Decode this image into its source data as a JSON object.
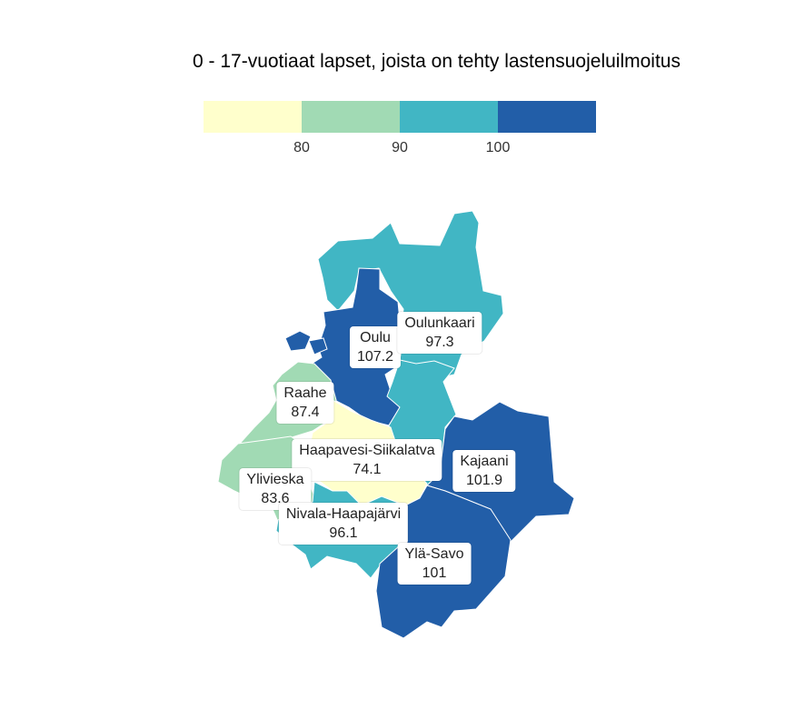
{
  "title": "0 - 17-vuotiaat lapset, joista on tehty lastensuojeluilmoitus",
  "legend": {
    "colors": [
      "#ffffcc",
      "#a1dab4",
      "#41b6c4",
      "#225ea8"
    ],
    "ticks": [
      "80",
      "90",
      "100"
    ]
  },
  "regions": [
    {
      "name": "Oulu",
      "value": "107.2",
      "color": "#225ea8"
    },
    {
      "name": "Oulunkaari",
      "value": "97.3",
      "color": "#41b6c4"
    },
    {
      "name": "Raahe",
      "value": "87.4",
      "color": "#a1dab4"
    },
    {
      "name": "Haapavesi-Siikalatva",
      "value": "74.1",
      "color": "#ffffcc"
    },
    {
      "name": "Kajaani",
      "value": "101.9",
      "color": "#225ea8"
    },
    {
      "name": "Ylivieska",
      "value": "83.6",
      "color": "#a1dab4"
    },
    {
      "name": "Nivala-Haapajärvi",
      "value": "96.1",
      "color": "#41b6c4"
    },
    {
      "name": "Ylä-Savo",
      "value": "101",
      "color": "#225ea8"
    }
  ]
}
